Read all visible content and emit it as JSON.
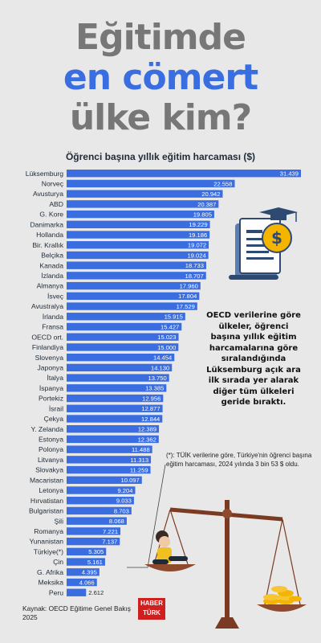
{
  "headline": {
    "line1": "Eğitimde",
    "line2": "en cömert",
    "line3": "ülke kim?"
  },
  "colors": {
    "bar": "#3a6ee0",
    "headline_gray": "#777777",
    "headline_blue": "#3a6ee0",
    "logo_red": "#cf1f1f"
  },
  "note": "OECD verilerine göre ülkeler, öğrenci başına yıllık eğitim harcamalarına göre sıralandığında Lüksemburg açık ara ilk sırada yer alarak diğer tüm ülkeleri geride bıraktı.",
  "footnote": "(*): TÜİK verilerine göre, Türkiye'nin öğrenci başına eğitim harcaması, 2024 yılında 3 bin 53 $ oldu.",
  "source": "Kaynak: OECD Eğitime Genel Bakış 2025",
  "logo": {
    "line1": "HABER",
    "line2": "TÜRK"
  },
  "icons": {
    "document": "education-finance-icon",
    "scale": "balance-scale-icon"
  },
  "chart_data": {
    "type": "bar",
    "orientation": "horizontal",
    "title": "Öğrenci başına yıllık eğitim harcaması ($)",
    "categories": [
      "Lüksemburg",
      "Norveç",
      "Avusturya",
      "ABD",
      "G. Kore",
      "Danimarka",
      "Hollanda",
      "Bir. Krallık",
      "Belçika",
      "Kanada",
      "İzlanda",
      "Almanya",
      "İsveç",
      "Avustralya",
      "İrlanda",
      "Fransa",
      "OECD ort.",
      "Finlandiya",
      "Slovenya",
      "Japonya",
      "İtalya",
      "İspanya",
      "Portekiz",
      "İsrail",
      "Çekya",
      "Y. Zelanda",
      "Estonya",
      "Polonya",
      "Litvanya",
      "Slovakya",
      "Macaristan",
      "Letonya",
      "Hırvatistan",
      "Bulgaristan",
      "Şili",
      "Romanya",
      "Yunanistan",
      "Türkiye(*)",
      "Çin",
      "G. Afrika",
      "Meksika",
      "Peru"
    ],
    "labels": [
      "31.439",
      "22.558",
      "20.942",
      "20.387",
      "19.805",
      "19.229",
      "19.186",
      "19.072",
      "19.024",
      "18.733",
      "18.707",
      "17.960",
      "17.804",
      "17.529",
      "15.915",
      "15.427",
      "15.023",
      "15.000",
      "14.454",
      "14.130",
      "13.750",
      "13.385",
      "12.956",
      "12.877",
      "12.844",
      "12.389",
      "12.362",
      "11.488",
      "11.313",
      "11.259",
      "10.097",
      "9.204",
      "9.033",
      "8.703",
      "8.068",
      "7.221",
      "7.137",
      "5.305",
      "5.161",
      "4.395",
      "4.066",
      "2.612"
    ],
    "values": [
      31439,
      22558,
      20942,
      20387,
      19805,
      19229,
      19186,
      19072,
      19024,
      18733,
      18707,
      17960,
      17804,
      17529,
      15915,
      15427,
      15023,
      15000,
      14454,
      14130,
      13750,
      13385,
      12956,
      12877,
      12844,
      12389,
      12362,
      11488,
      11313,
      11259,
      10097,
      9204,
      9033,
      8703,
      8068,
      7221,
      7137,
      5305,
      5161,
      4395,
      4066,
      2612
    ]
  }
}
